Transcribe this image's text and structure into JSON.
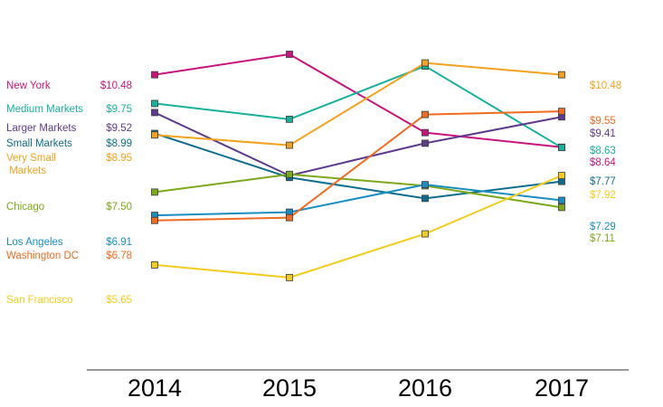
{
  "chart_data": {
    "type": "line",
    "title": "",
    "xlabel": "",
    "ylabel": "",
    "x": [
      "2014",
      "2015",
      "2016",
      "2017"
    ],
    "ylim": [
      4.5,
      11.0
    ],
    "series": [
      {
        "name": "New York",
        "color": "#C8157D",
        "values": [
          10.48,
          11.0,
          9.01,
          8.64
        ],
        "start_label": "$10.48",
        "end_label": "$8.64"
      },
      {
        "name": "Medium Markets",
        "color": "#18B09A",
        "values": [
          9.75,
          9.35,
          10.7,
          8.63
        ],
        "start_label": "$9.75",
        "end_label": "$8.63"
      },
      {
        "name": "Larger Markets",
        "color": "#5E3A8E",
        "values": [
          9.52,
          7.92,
          8.74,
          9.41
        ],
        "start_label": "$9.52",
        "end_label": "$9.41"
      },
      {
        "name": "Small Markets",
        "color": "#0F6E8E",
        "values": [
          8.99,
          7.87,
          7.34,
          7.77
        ],
        "start_label": "$8.99",
        "end_label": "$7.77"
      },
      {
        "name": "Very Small Markets",
        "label_lines": [
          "Very Small",
          " Markets"
        ],
        "color": "#F2A21E",
        "values": [
          8.95,
          8.69,
          10.78,
          10.48
        ],
        "start_label": "$8.95",
        "end_label": "$10.48"
      },
      {
        "name": "Chicago",
        "color": "#7CA81C",
        "values": [
          7.5,
          7.95,
          7.66,
          7.11
        ],
        "start_label": "$7.50",
        "end_label": "$7.11"
      },
      {
        "name": "Los Angeles",
        "color": "#1A8EC0",
        "values": [
          6.91,
          6.99,
          7.69,
          7.29
        ],
        "start_label": "$6.91",
        "end_label": "$7.29"
      },
      {
        "name": "Washington DC",
        "color": "#EF6B1F",
        "values": [
          6.78,
          6.85,
          9.47,
          9.55
        ],
        "start_label": "$6.78",
        "end_label": "$9.55"
      },
      {
        "name": "San Francisco",
        "color": "#F3CC1C",
        "values": [
          5.65,
          5.33,
          6.44,
          7.92
        ],
        "start_label": "$5.65",
        "end_label": "$7.92"
      }
    ],
    "grid": false,
    "legend": "left"
  }
}
